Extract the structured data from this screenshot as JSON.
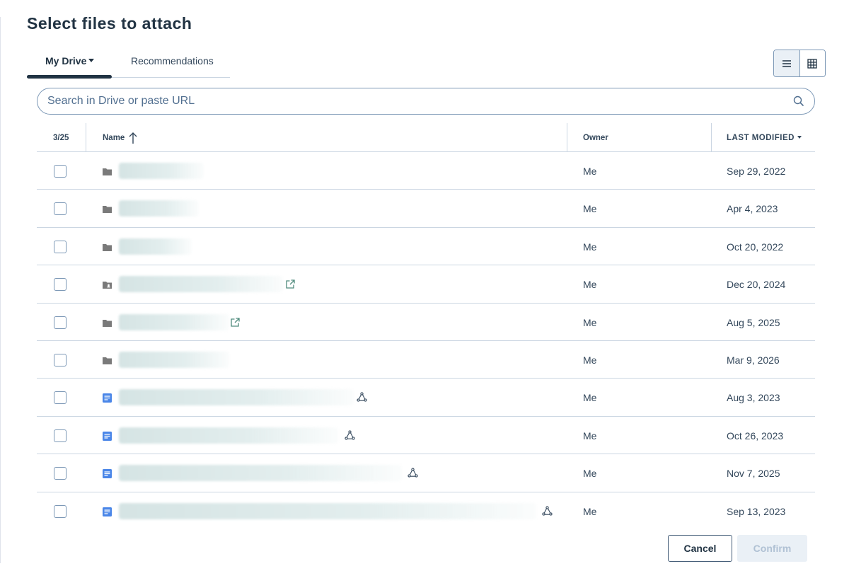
{
  "dialog": {
    "title": "Select files to attach"
  },
  "tabs": [
    {
      "label": "My Drive",
      "active": true,
      "has_dropdown": true
    },
    {
      "label": "Recommendations",
      "active": false
    }
  ],
  "view_toggle": {
    "options": [
      "list-view",
      "grid-view"
    ],
    "selected": "list-view"
  },
  "search": {
    "placeholder": "Search in Drive or paste URL",
    "value": ""
  },
  "table": {
    "selection_count": "3/25",
    "columns": {
      "name": "Name",
      "owner": "Owner",
      "modified": "LAST MODIFIED"
    },
    "sort": {
      "column": "Name",
      "direction": "ascending"
    },
    "rows": [
      {
        "type": "folder",
        "owner": "Me",
        "modified": "Sep 29, 2022",
        "extra_icon": "none"
      },
      {
        "type": "folder",
        "owner": "Me",
        "modified": "Apr 4, 2023",
        "extra_icon": "none"
      },
      {
        "type": "folder",
        "owner": "Me",
        "modified": "Oct 20, 2022",
        "extra_icon": "none"
      },
      {
        "type": "shared-folder",
        "owner": "Me",
        "modified": "Dec 20, 2024",
        "extra_icon": "external-link"
      },
      {
        "type": "folder",
        "owner": "Me",
        "modified": "Aug 5, 2025",
        "extra_icon": "external-link"
      },
      {
        "type": "folder",
        "owner": "Me",
        "modified": "Mar 9, 2026",
        "extra_icon": "none"
      },
      {
        "type": "document",
        "owner": "Me",
        "modified": "Aug 3, 2023",
        "extra_icon": "share"
      },
      {
        "type": "document",
        "owner": "Me",
        "modified": "Oct 26, 2023",
        "extra_icon": "share"
      },
      {
        "type": "document",
        "owner": "Me",
        "modified": "Nov 7, 2025",
        "extra_icon": "share"
      },
      {
        "type": "document",
        "owner": "Me",
        "modified": "Sep 13, 2023",
        "extra_icon": "share"
      }
    ]
  },
  "footer": {
    "cancel_label": "Cancel",
    "confirm_label": "Confirm",
    "confirm_enabled": false
  },
  "colors": {
    "primary_text": "#213343",
    "border": "#cbd6e2",
    "doc_icon": "#4a86e8",
    "folder_icon": "#7a7a7a"
  }
}
